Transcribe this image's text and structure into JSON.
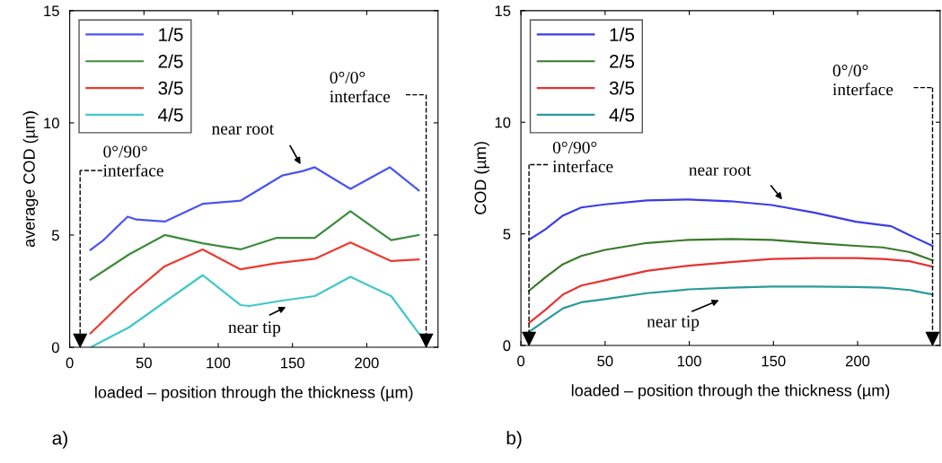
{
  "chart_data": [
    {
      "type": "line",
      "xlabel": "loaded – position through the thickness (µm)",
      "ylabel": "average COD (µm)",
      "xlim": [
        0,
        248
      ],
      "ylim": [
        0,
        15
      ],
      "xticks": [
        0,
        50,
        100,
        150,
        200
      ],
      "yticks": [
        0,
        5,
        10,
        15
      ],
      "legend": "top left",
      "grid": false,
      "series": [
        {
          "name": "1/5",
          "color": "#4a55f0",
          "x": [
            14,
            22,
            39,
            45,
            64,
            89.5,
            115,
            143,
            157,
            165,
            189,
            215.5,
            235
          ],
          "values": [
            4.34,
            4.73,
            5.82,
            5.69,
            5.6,
            6.39,
            6.53,
            7.65,
            7.85,
            8.02,
            7.06,
            8.02,
            6.99
          ]
        },
        {
          "name": "2/5",
          "color": "#3c8c3c",
          "x": [
            14,
            40,
            64,
            89.5,
            115,
            139,
            165,
            189,
            216.5,
            235
          ],
          "values": [
            3.01,
            4.14,
            5.0,
            4.63,
            4.36,
            4.87,
            4.87,
            6.06,
            4.77,
            5.0
          ]
        },
        {
          "name": "3/5",
          "color": "#ec3a30",
          "x": [
            14,
            40,
            64,
            89.5,
            115,
            139,
            165,
            189,
            216.5,
            235
          ],
          "values": [
            0.62,
            2.28,
            3.61,
            4.36,
            3.47,
            3.74,
            3.94,
            4.67,
            3.84,
            3.91
          ]
        },
        {
          "name": "4/5",
          "color": "#40c8c8",
          "x": [
            15,
            40,
            64,
            89.5,
            115,
            121,
            143,
            165,
            189,
            216.5,
            235
          ],
          "values": [
            0.03,
            0.89,
            2.02,
            3.21,
            1.88,
            1.84,
            2.08,
            2.28,
            3.14,
            2.28,
            0.62
          ]
        }
      ],
      "ref_lines": [
        {
          "axis": "x",
          "value": 7,
          "label": "0°/90°\ninterface",
          "color": "#000000",
          "line_style": "dashed"
        },
        {
          "axis": "x",
          "value": 240,
          "label": "0°/0°\ninterface",
          "color": "#000000",
          "line_style": "dashed"
        }
      ],
      "annotations": [
        "near root",
        "near tip",
        "a)"
      ]
    },
    {
      "type": "line",
      "xlabel": "loaded – position through the thickness (µm)",
      "ylabel": "COD (µm)",
      "xlim": [
        0,
        249
      ],
      "ylim": [
        0,
        15
      ],
      "xticks": [
        0,
        50,
        100,
        150,
        200
      ],
      "yticks": [
        0,
        5,
        10,
        15
      ],
      "legend": "top left",
      "grid": false,
      "series": [
        {
          "name": "1/5",
          "color": "#3c3ce6",
          "x": [
            4.8,
            14.5,
            25,
            35.8,
            50,
            74.8,
            99.6,
            124.5,
            149,
            174,
            199,
            220,
            231,
            244.5
          ],
          "values": [
            4.73,
            5.2,
            5.82,
            6.18,
            6.32,
            6.5,
            6.54,
            6.46,
            6.29,
            5.95,
            5.54,
            5.34,
            4.93,
            4.46
          ]
        },
        {
          "name": "2/5",
          "color": "#3a7a2a",
          "x": [
            4.8,
            14.5,
            25,
            35.8,
            50,
            74.8,
            99.6,
            124.5,
            149,
            174,
            199,
            215,
            231,
            244.5
          ],
          "values": [
            2.45,
            3.05,
            3.64,
            4.01,
            4.28,
            4.59,
            4.73,
            4.77,
            4.73,
            4.59,
            4.46,
            4.39,
            4.18,
            3.81
          ]
        },
        {
          "name": "3/5",
          "color": "#e83232",
          "x": [
            4.8,
            14.5,
            25,
            35.8,
            50,
            74.8,
            99.6,
            124.5,
            149,
            174,
            199,
            215,
            231,
            244.5
          ],
          "values": [
            1.01,
            1.59,
            2.28,
            2.68,
            2.92,
            3.34,
            3.57,
            3.73,
            3.87,
            3.91,
            3.91,
            3.87,
            3.77,
            3.53
          ]
        },
        {
          "name": "4/5",
          "color": "#2a9a9a",
          "x": [
            4.8,
            14.5,
            25,
            35.8,
            50,
            74.8,
            99.6,
            124.5,
            149,
            174,
            199,
            215,
            231,
            244.5
          ],
          "values": [
            0.6,
            1.12,
            1.66,
            1.93,
            2.07,
            2.34,
            2.51,
            2.59,
            2.64,
            2.64,
            2.62,
            2.59,
            2.48,
            2.28
          ]
        }
      ],
      "ref_lines": [
        {
          "axis": "x",
          "value": 4.8,
          "label": "0°/90°\ninterface",
          "color": "#000000",
          "line_style": "dashed"
        },
        {
          "axis": "x",
          "value": 244.5,
          "label": "0°/0°\ninterface",
          "color": "#000000",
          "line_style": "dashed"
        }
      ],
      "annotations": [
        "near root",
        "near tip",
        "b)"
      ]
    }
  ]
}
